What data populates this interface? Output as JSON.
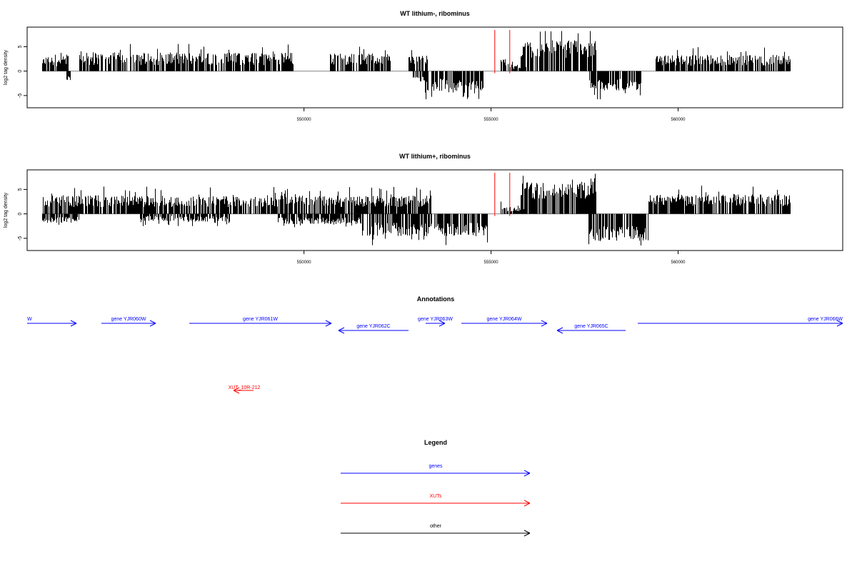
{
  "chart_data": [
    {
      "type": "bar",
      "title": "WT lithium-, ribominus",
      "xlabel": "",
      "ylabel": "log2 tag density",
      "xlim": [
        542600,
        564400
      ],
      "ylim": [
        -7.5,
        9
      ],
      "yticks": [
        -5,
        0,
        5
      ],
      "xticks": [
        550000,
        555000,
        560000
      ],
      "xtick_labels": [
        "550000",
        "555000",
        "560000"
      ],
      "ytick_labels": [
        "-5",
        "0",
        "5"
      ],
      "data_range": [
        543000,
        563000
      ],
      "segments": [
        {
          "x": [
            543000,
            543700
          ],
          "sign": 1,
          "level": 2.0,
          "var": 1.0
        },
        {
          "x": [
            543650,
            543750
          ],
          "sign": -1,
          "level": 1.5,
          "var": 0.8
        },
        {
          "x": [
            544000,
            549700
          ],
          "sign": 1,
          "level": 2.5,
          "var": 1.3
        },
        {
          "x": [
            550700,
            552300
          ],
          "sign": 1,
          "level": 2.5,
          "var": 1.2
        },
        {
          "x": [
            552800,
            553300
          ],
          "sign": 1,
          "level": 2.3,
          "var": 1.0
        },
        {
          "x": [
            552900,
            553300
          ],
          "sign": -1,
          "level": 1.5,
          "var": 0.8
        },
        {
          "x": [
            553200,
            554800
          ],
          "sign": -1,
          "level": 2.8,
          "var": 1.3
        },
        {
          "x": [
            555250,
            555400
          ],
          "sign": 1,
          "level": 1.8,
          "var": 0.8
        },
        {
          "x": [
            555450,
            555950
          ],
          "sign": 1,
          "level": 1.0,
          "var": 0.6
        },
        {
          "x": [
            555800,
            557800
          ],
          "sign": 1,
          "level": 4.5,
          "var": 1.8
        },
        {
          "x": [
            557600,
            559000
          ],
          "sign": -1,
          "level": 2.8,
          "var": 1.2
        },
        {
          "x": [
            559400,
            563000
          ],
          "sign": 1,
          "level": 2.2,
          "var": 1.1
        }
      ],
      "red_lines_x": [
        555100,
        555500
      ]
    },
    {
      "type": "bar",
      "title": "WT lithium+, ribominus",
      "xlabel": "",
      "ylabel": "log2 tag density",
      "xlim": [
        542600,
        564400
      ],
      "ylim": [
        -7.5,
        9
      ],
      "yticks": [
        -5,
        0,
        5
      ],
      "xticks": [
        550000,
        555000,
        560000
      ],
      "xtick_labels": [
        "550000",
        "555000",
        "560000"
      ],
      "ytick_labels": [
        "-5",
        "0",
        "5"
      ],
      "data_range": [
        543000,
        563000
      ],
      "segments": [
        {
          "x": [
            543000,
            553400
          ],
          "sign": 1,
          "level": 2.6,
          "var": 1.2
        },
        {
          "x": [
            543000,
            544000
          ],
          "sign": -1,
          "level": 1.2,
          "var": 0.6
        },
        {
          "x": [
            545600,
            548000
          ],
          "sign": -1,
          "level": 1.0,
          "var": 0.6
        },
        {
          "x": [
            549300,
            551500
          ],
          "sign": -1,
          "level": 1.4,
          "var": 0.7
        },
        {
          "x": [
            551500,
            554900
          ],
          "sign": -1,
          "level": 3.2,
          "var": 1.4
        },
        {
          "x": [
            555250,
            555400
          ],
          "sign": 1,
          "level": 1.8,
          "var": 0.8
        },
        {
          "x": [
            555400,
            555950
          ],
          "sign": 1,
          "level": 0.9,
          "var": 0.5
        },
        {
          "x": [
            555800,
            557800
          ],
          "sign": 1,
          "level": 4.8,
          "var": 1.8
        },
        {
          "x": [
            557600,
            559200
          ],
          "sign": -1,
          "level": 4.0,
          "var": 1.5
        },
        {
          "x": [
            559200,
            563000
          ],
          "sign": 1,
          "level": 2.8,
          "var": 1.2
        }
      ],
      "red_lines_x": [
        555100,
        555500
      ]
    }
  ],
  "annotations": {
    "title": "Annotations",
    "genes": [
      {
        "label": "W",
        "from": 542600,
        "to": 543600,
        "dir": 1,
        "row": 0
      },
      {
        "label": "gene YJR060W",
        "from": 544300,
        "to": 545400,
        "dir": 1,
        "row": 0
      },
      {
        "label": "gene YJR061W",
        "from": 546200,
        "to": 549000,
        "dir": 1,
        "row": 0
      },
      {
        "label": "gene YJR062C",
        "from": 549200,
        "to": 550600,
        "dir": -1,
        "row": 1
      },
      {
        "label": "gene YJR063W",
        "from": 550900,
        "to": 551300,
        "dir": 1,
        "row": 0
      },
      {
        "label": "gene YJR064W",
        "from": 551600,
        "to": 553300,
        "dir": 1,
        "row": 0
      },
      {
        "label": "gene YJR065C",
        "from": 553800,
        "to": 555300,
        "dir": -1,
        "row": 1
      },
      {
        "label": "gene YJR066W",
        "from": 555600,
        "to": 559000,
        "dir": 1,
        "row": 0
      }
    ],
    "xuts": [
      {
        "label": "XUT_10R-212",
        "from": 546900,
        "to": 547300,
        "dir": -1
      }
    ]
  },
  "legend": {
    "title": "Legend",
    "items": [
      {
        "label": "genes",
        "color": "#0000ff"
      },
      {
        "label": "XUTs",
        "color": "#ff0000"
      },
      {
        "label": "other",
        "color": "#000000"
      }
    ]
  }
}
